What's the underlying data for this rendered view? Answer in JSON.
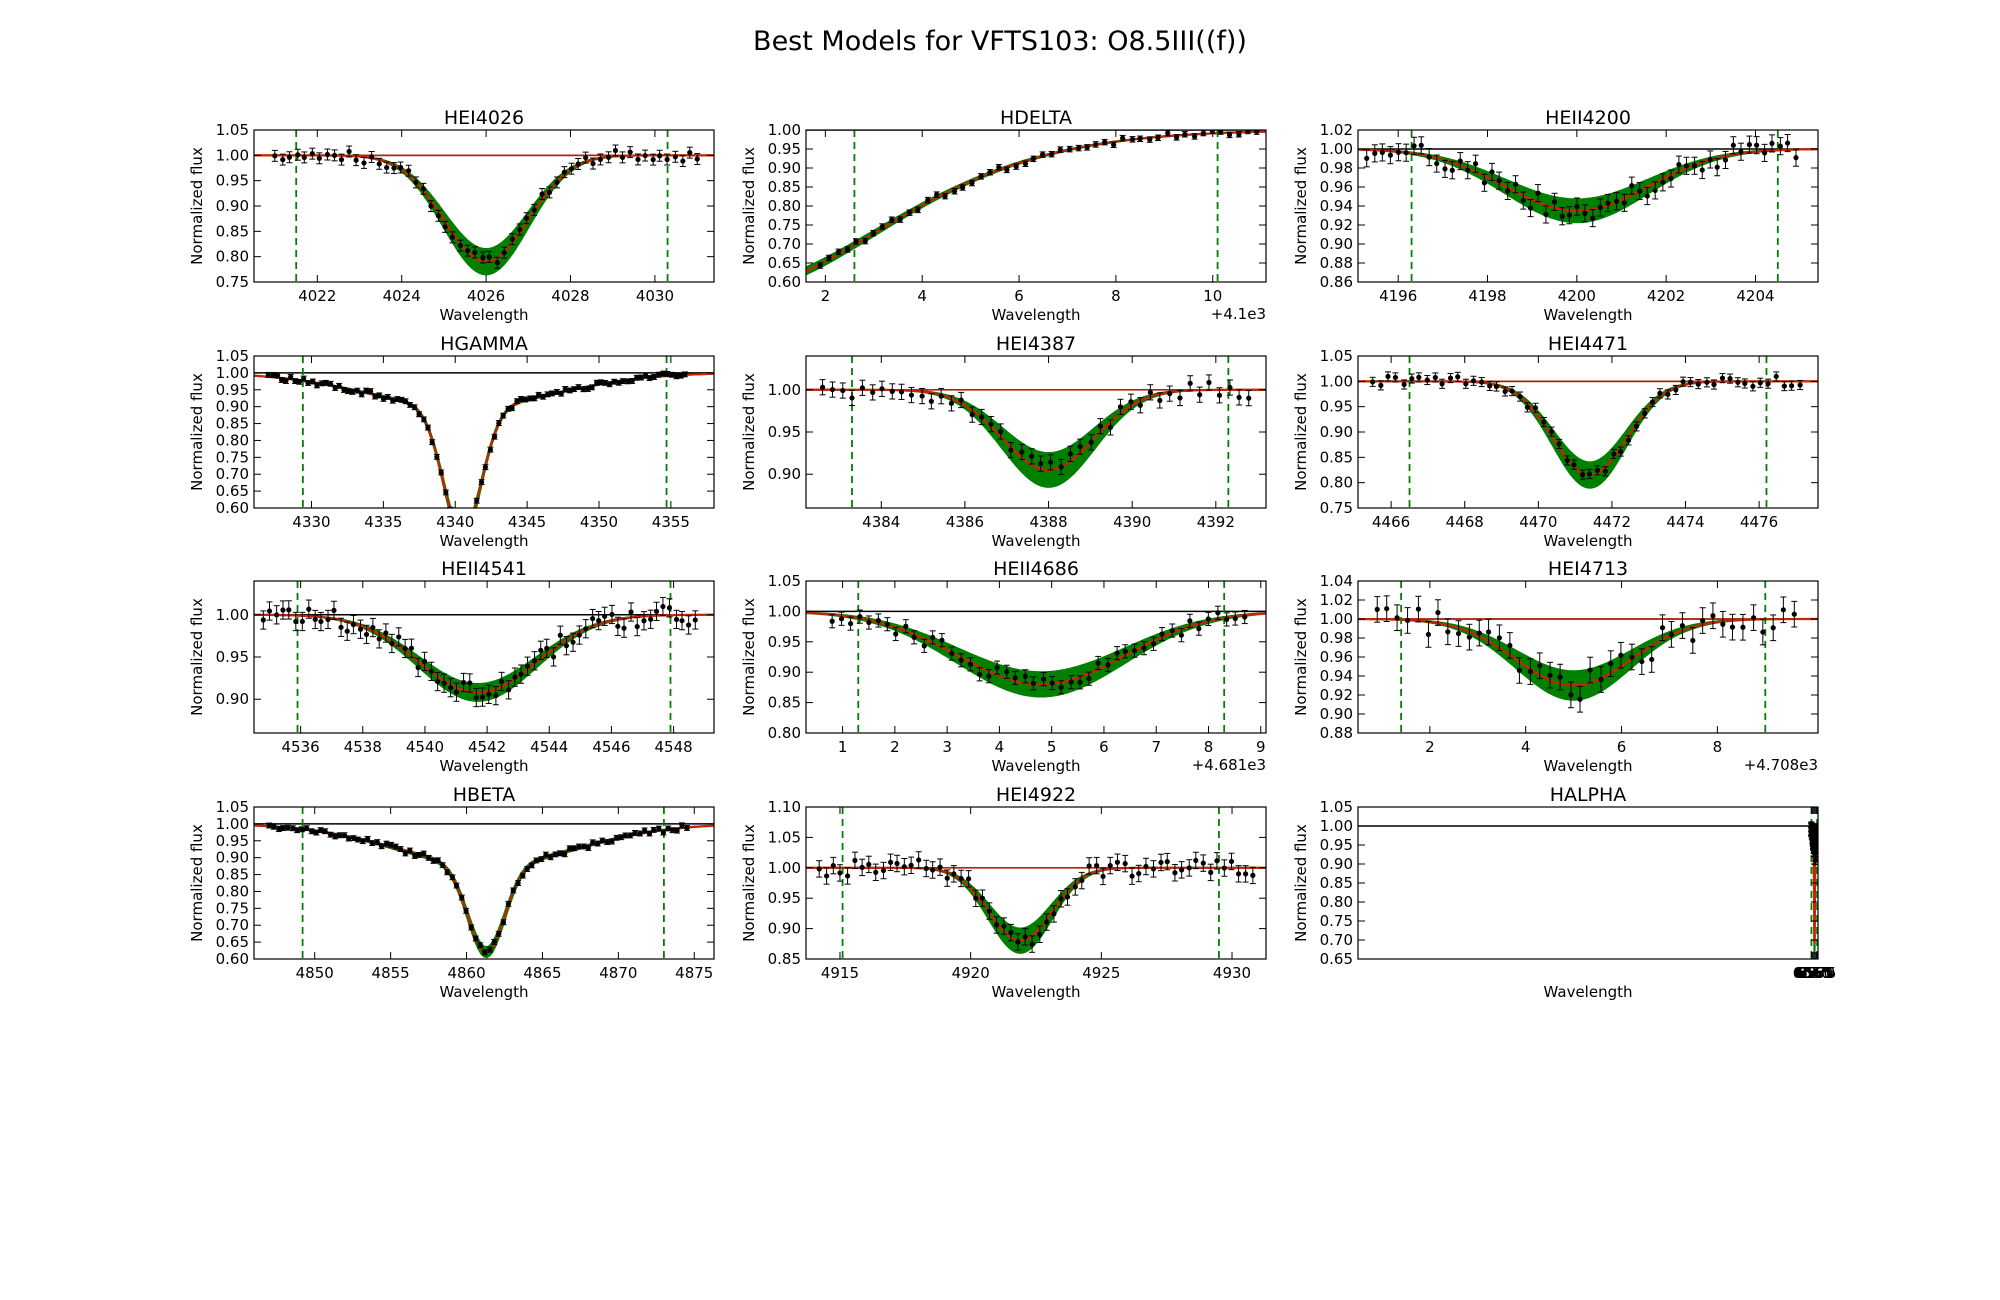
{
  "figure_title": "Best Models for VFTS103: O8.5III((f))",
  "colors": {
    "model_band": "#008000",
    "best_fit": "#cc2200",
    "data_points": "#000000",
    "continuum": "#000000",
    "line_window": "#008000"
  },
  "chart_data": [
    {
      "type": "line",
      "title": "HEI4026",
      "xlabel": "Wavelength",
      "ylabel": "Normalized flux",
      "xlim": [
        4020.5,
        4031.4
      ],
      "ylim": [
        0.75,
        1.05
      ],
      "xticks": [
        4022,
        4024,
        4026,
        4028,
        4030
      ],
      "xtick_labels": [
        "4022",
        "4024",
        "4026",
        "4028",
        "4030"
      ],
      "yticks": [
        0.75,
        0.8,
        0.85,
        0.9,
        0.95,
        1.0,
        1.05
      ],
      "ytick_labels": [
        "0.75",
        "0.80",
        "0.85",
        "0.90",
        "0.95",
        "1.00",
        "1.05"
      ],
      "offset_label": "",
      "continuum": 1.0,
      "windows": [
        4021.5,
        4030.3
      ],
      "line": {
        "center": 4026.0,
        "sigma": 1.0,
        "depth": 0.21,
        "band_spread": 0.025,
        "red_cont": [
          4020.5,
          4031.4
        ]
      },
      "data": {
        "x0": 4021.0,
        "x1": 4031.0,
        "n": 58,
        "err": 0.012
      }
    },
    {
      "type": "line",
      "title": "HDELTA",
      "xlabel": "Wavelength",
      "ylabel": "Normalized flux",
      "xlim": [
        1.6,
        11.1
      ],
      "ylim": [
        0.6,
        1.0
      ],
      "xticks": [
        2,
        4,
        6,
        8,
        10
      ],
      "xtick_labels": [
        "2",
        "4",
        "6",
        "8",
        "10"
      ],
      "yticks": [
        0.6,
        0.65,
        0.7,
        0.75,
        0.8,
        0.85,
        0.9,
        0.95,
        1.0
      ],
      "ytick_labels": [
        "0.60",
        "0.65",
        "0.70",
        "0.75",
        "0.80",
        "0.85",
        "0.90",
        "0.95",
        "1.00"
      ],
      "offset_label": "+4.1e3",
      "continuum": 1.0,
      "windows": [
        2.6,
        10.1
      ],
      "line": {
        "center": 0.8,
        "sigma": 2.9,
        "depth": 0.4,
        "band_spread": 0.01,
        "red_cont": [
          0.0,
          0.0
        ]
      },
      "data": {
        "x0": 1.9,
        "x1": 10.9,
        "n": 50,
        "err": 0.008
      }
    },
    {
      "type": "line",
      "title": "HEII4200",
      "xlabel": "Wavelength",
      "ylabel": "Normalized flux",
      "xlim": [
        4195.1,
        4205.4
      ],
      "ylim": [
        0.86,
        1.02
      ],
      "xticks": [
        4196,
        4198,
        4200,
        4202,
        4204
      ],
      "xtick_labels": [
        "4196",
        "4198",
        "4200",
        "4202",
        "4204"
      ],
      "yticks": [
        0.86,
        0.88,
        0.9,
        0.92,
        0.94,
        0.96,
        0.98,
        1.0,
        1.02
      ],
      "ytick_labels": [
        "0.86",
        "0.88",
        "0.90",
        "0.92",
        "0.94",
        "0.96",
        "0.98",
        "1.00",
        "1.02"
      ],
      "offset_label": "",
      "continuum": 1.0,
      "windows": [
        4196.3,
        4204.5
      ],
      "line": {
        "center": 4200.0,
        "sigma": 1.6,
        "depth": 0.065,
        "band_spread": 0.012,
        "red_cont": [
          0.0,
          0.0
        ]
      },
      "data": {
        "x0": 4195.3,
        "x1": 4204.9,
        "n": 56,
        "err": 0.01
      }
    },
    {
      "type": "line",
      "title": "HGAMMA",
      "xlabel": "Wavelength",
      "ylabel": "Normalized flux",
      "xlim": [
        4326.0,
        4358.0
      ],
      "ylim": [
        0.6,
        1.05
      ],
      "xticks": [
        4330,
        4335,
        4340,
        4345,
        4350,
        4355
      ],
      "xtick_labels": [
        "4330",
        "4335",
        "4340",
        "4345",
        "4350",
        "4355"
      ],
      "yticks": [
        0.6,
        0.65,
        0.7,
        0.75,
        0.8,
        0.85,
        0.9,
        0.95,
        1.0,
        1.05
      ],
      "ytick_labels": [
        "0.60",
        "0.65",
        "0.70",
        "0.75",
        "0.80",
        "0.85",
        "0.90",
        "0.95",
        "1.00",
        "1.05"
      ],
      "offset_label": "",
      "continuum": 1.0,
      "windows": [
        4329.4,
        4354.7
      ],
      "line": {
        "center": 4340.5,
        "sigma": 1.3,
        "depth": 0.38,
        "band_spread": 0.01,
        "wing": 0.1,
        "wsigma": 6.5,
        "red_cont": [
          0.0,
          0.0
        ]
      },
      "data": {
        "x0": 4327.0,
        "x1": 4356.0,
        "n": 95,
        "err": 0.008
      }
    },
    {
      "type": "line",
      "title": "HEI4387",
      "xlabel": "Wavelength",
      "ylabel": "Normalized flux",
      "xlim": [
        4382.2,
        4393.2
      ],
      "ylim": [
        0.86,
        1.04
      ],
      "xticks": [
        4384,
        4386,
        4388,
        4390,
        4392
      ],
      "xtick_labels": [
        "4384",
        "4386",
        "4388",
        "4390",
        "4392"
      ],
      "yticks": [
        0.9,
        0.95,
        1.0
      ],
      "ytick_labels": [
        "0.90",
        "0.95",
        "1.00"
      ],
      "offset_label": "",
      "continuum": 1.0,
      "windows": [
        4383.3,
        4392.3
      ],
      "line": {
        "center": 4388.0,
        "sigma": 1.1,
        "depth": 0.095,
        "band_spread": 0.02,
        "red_cont": [
          4382.2,
          4393.2
        ]
      },
      "data": {
        "x0": 4382.6,
        "x1": 4392.8,
        "n": 44,
        "err": 0.01
      }
    },
    {
      "type": "line",
      "title": "HEI4471",
      "xlabel": "Wavelength",
      "ylabel": "Normalized flux",
      "xlim": [
        4465.1,
        4477.6
      ],
      "ylim": [
        0.75,
        1.05
      ],
      "xticks": [
        4466,
        4468,
        4470,
        4472,
        4474,
        4476
      ],
      "xtick_labels": [
        "4466",
        "4468",
        "4470",
        "4472",
        "4474",
        "4476"
      ],
      "yticks": [
        0.75,
        0.8,
        0.85,
        0.9,
        0.95,
        1.0,
        1.05
      ],
      "ytick_labels": [
        "0.75",
        "0.80",
        "0.85",
        "0.90",
        "0.95",
        "1.00",
        "1.05"
      ],
      "offset_label": "",
      "continuum": 1.0,
      "windows": [
        4466.5,
        4476.2
      ],
      "line": {
        "center": 4471.4,
        "sigma": 1.0,
        "depth": 0.185,
        "band_spread": 0.025,
        "red_cont": [
          4465.1,
          4477.6
        ]
      },
      "data": {
        "x0": 4465.5,
        "x1": 4477.1,
        "n": 56,
        "err": 0.01
      }
    },
    {
      "type": "line",
      "title": "HEII4541",
      "xlabel": "Wavelength",
      "ylabel": "Normalized flux",
      "xlim": [
        4534.5,
        4549.3
      ],
      "ylim": [
        0.86,
        1.04
      ],
      "xticks": [
        4536,
        4538,
        4540,
        4542,
        4544,
        4546,
        4548
      ],
      "xtick_labels": [
        "4536",
        "4538",
        "4540",
        "4542",
        "4544",
        "4546",
        "4548"
      ],
      "yticks": [
        0.9,
        0.95,
        1.0
      ],
      "ytick_labels": [
        "0.90",
        "0.95",
        "1.00"
      ],
      "offset_label": "",
      "continuum": 1.0,
      "windows": [
        4535.9,
        4547.9
      ],
      "line": {
        "center": 4541.7,
        "sigma": 1.9,
        "depth": 0.092,
        "band_spread": 0.01,
        "red_cont": [
          0.0,
          0.0
        ]
      },
      "data": {
        "x0": 4534.8,
        "x1": 4548.7,
        "n": 68,
        "err": 0.012
      }
    },
    {
      "type": "line",
      "title": "HEII4686",
      "xlabel": "Wavelength",
      "ylabel": "Normalized flux",
      "xlim": [
        0.3,
        9.1
      ],
      "ylim": [
        0.8,
        1.05
      ],
      "xticks": [
        1,
        2,
        3,
        4,
        5,
        6,
        7,
        8,
        9
      ],
      "xtick_labels": [
        "1",
        "2",
        "3",
        "4",
        "5",
        "6",
        "7",
        "8",
        "9"
      ],
      "yticks": [
        0.8,
        0.85,
        0.9,
        0.95,
        1.0,
        1.05
      ],
      "ytick_labels": [
        "0.80",
        "0.85",
        "0.90",
        "0.95",
        "1.00",
        "1.05"
      ],
      "offset_label": "+4.681e3",
      "continuum": 1.0,
      "windows": [
        1.3,
        8.3
      ],
      "line": {
        "center": 4.8,
        "sigma": 1.6,
        "depth": 0.12,
        "band_spread": 0.02,
        "red_cont": [
          0.0,
          0.0
        ]
      },
      "data": {
        "x0": 0.8,
        "x1": 8.7,
        "n": 46,
        "err": 0.012
      }
    },
    {
      "type": "line",
      "title": "HEI4713",
      "xlabel": "Wavelength",
      "ylabel": "Normalized flux",
      "xlim": [
        0.5,
        10.1
      ],
      "ylim": [
        0.88,
        1.04
      ],
      "xticks": [
        2,
        4,
        6,
        8
      ],
      "xtick_labels": [
        "2",
        "4",
        "6",
        "8"
      ],
      "yticks": [
        0.88,
        0.9,
        0.92,
        0.94,
        0.96,
        0.98,
        1.0,
        1.02,
        1.04
      ],
      "ytick_labels": [
        "0.88",
        "0.90",
        "0.92",
        "0.94",
        "0.96",
        "0.98",
        "1.00",
        "1.02",
        "1.04"
      ],
      "offset_label": "+4.708e3",
      "continuum": 1.0,
      "windows": [
        1.4,
        9.0
      ],
      "line": {
        "center": 5.0,
        "sigma": 1.2,
        "depth": 0.07,
        "band_spread": 0.015,
        "red_cont": [
          0.5,
          10.1
        ]
      },
      "data": {
        "x0": 0.9,
        "x1": 9.6,
        "n": 42,
        "err": 0.015
      }
    },
    {
      "type": "line",
      "title": "HBETA",
      "xlabel": "Wavelength",
      "ylabel": "Normalized flux",
      "xlim": [
        4846.0,
        4876.3
      ],
      "ylim": [
        0.6,
        1.05
      ],
      "xticks": [
        4850,
        4855,
        4860,
        4865,
        4870,
        4875
      ],
      "xtick_labels": [
        "4850",
        "4855",
        "4860",
        "4865",
        "4870",
        "4875"
      ],
      "yticks": [
        0.6,
        0.65,
        0.7,
        0.75,
        0.8,
        0.85,
        0.9,
        0.95,
        1.0,
        1.05
      ],
      "ytick_labels": [
        "0.60",
        "0.65",
        "0.70",
        "0.75",
        "0.80",
        "0.85",
        "0.90",
        "0.95",
        "1.00",
        "1.05"
      ],
      "offset_label": "",
      "continuum": 1.0,
      "windows": [
        4849.2,
        4873.0
      ],
      "line": {
        "center": 4861.3,
        "sigma": 1.2,
        "depth": 0.26,
        "band_spread": 0.01,
        "wing": 0.12,
        "wsigma": 6.0,
        "red_cont": [
          0.0,
          0.0
        ]
      },
      "data": {
        "x0": 4847.0,
        "x1": 4874.5,
        "n": 90,
        "err": 0.008
      }
    },
    {
      "type": "line",
      "title": "HEI4922",
      "xlabel": "Wavelength",
      "ylabel": "Normalized flux",
      "xlim": [
        4913.7,
        4931.3
      ],
      "ylim": [
        0.85,
        1.1
      ],
      "xticks": [
        4915,
        4920,
        4925,
        4930
      ],
      "xtick_labels": [
        "4915",
        "4920",
        "4925",
        "4930"
      ],
      "yticks": [
        0.85,
        0.9,
        0.95,
        1.0,
        1.05,
        1.1
      ],
      "ytick_labels": [
        "0.85",
        "0.90",
        "0.95",
        "1.00",
        "1.05",
        "1.10"
      ],
      "offset_label": "",
      "continuum": 1.0,
      "windows": [
        4915.1,
        4929.5
      ],
      "line": {
        "center": 4921.9,
        "sigma": 1.2,
        "depth": 0.12,
        "band_spread": 0.02,
        "red_cont": [
          4913.7,
          4931.3
        ]
      },
      "data": {
        "x0": 4914.2,
        "x1": 4930.8,
        "n": 62,
        "err": 0.015
      }
    },
    {
      "type": "line",
      "title": "HALPHA",
      "xlabel": "Wavelength",
      "ylabel": "Normalized flux",
      "xlim": [
        4545.0,
        6578.0
      ],
      "ylim": [
        0.65,
        1.05
      ],
      "xticks": [
        6550,
        6555,
        6560,
        6565,
        6570,
        6575
      ],
      "xtick_labels": [
        "6550",
        "6555",
        "6560",
        "6565",
        "6570",
        "6575"
      ],
      "yticks": [
        0.65,
        0.7,
        0.75,
        0.8,
        0.85,
        0.9,
        0.95,
        1.0,
        1.05
      ],
      "ytick_labels": [
        "0.65",
        "0.70",
        "0.75",
        "0.80",
        "0.85",
        "0.90",
        "0.95",
        "1.00",
        "1.05"
      ],
      "offset_label": "",
      "continuum": 1.0,
      "windows": [
        6549.0,
        6574.0
      ],
      "line": {
        "center": 6562.5,
        "sigma": 1.7,
        "depth": 0.25,
        "band_spread": 0.02,
        "wing": 0.06,
        "wsigma": 7.0,
        "red_cont": [
          0.0,
          0.0
        ]
      },
      "data": {
        "x0": 6547.5,
        "x1": 6576.0,
        "n": 130,
        "err": 0.012,
        "gap": [
          6558.5,
          6566.0
        ]
      }
    }
  ]
}
